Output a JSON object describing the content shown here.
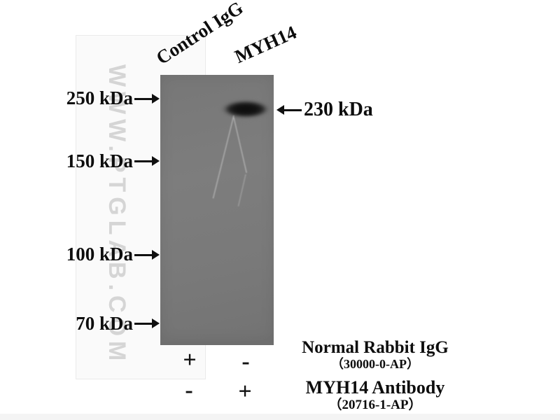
{
  "figure": {
    "watermark": "WWW.PTGLAB.COM",
    "lanes": {
      "control": "Control IgG",
      "target": "MYH14"
    },
    "mw_markers": {
      "m250": "250 kDa",
      "m150": "150 kDa",
      "m100": "100 kDa",
      "m70": "70 kDa"
    },
    "band": {
      "label": "230 kDa"
    },
    "reagent_rows": [
      {
        "signs": [
          "+",
          "-"
        ],
        "name": "Normal Rabbit IgG",
        "catalog": "（30000-0-AP）"
      },
      {
        "signs": [
          "-",
          "+"
        ],
        "name": "MYH14 Antibody",
        "catalog": "（20716-1-AP）"
      }
    ],
    "colors": {
      "membrane": "#7a7a7a",
      "band": "#121212",
      "watermark": "#d5d5d5",
      "annotation": "#0d0d0d"
    }
  }
}
